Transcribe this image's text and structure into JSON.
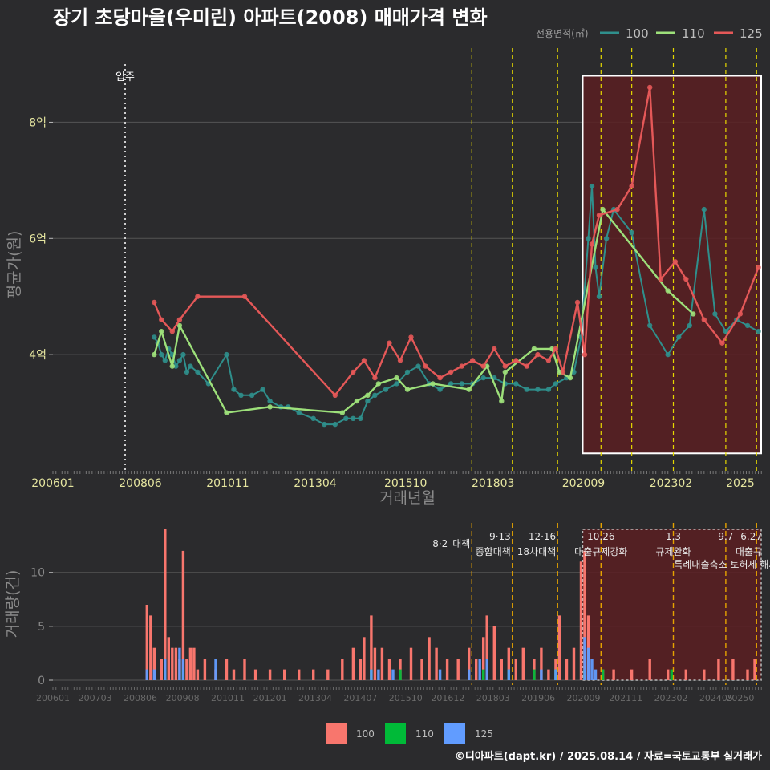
{
  "title": "장기 초당마을(우미린) 아파트(2008) 매매가격 변화",
  "credit": "©디아파트(dapt.kr) / 2025.08.14 / 자료=국토교통부 실거래가",
  "legend_title": "전용면적(㎡)",
  "colors": {
    "background": "#2b2b2d",
    "grid": "#555555",
    "s100": "#2f8f8c",
    "s110": "#9de07a",
    "s125": "#e45858",
    "bar100": "#f8766d",
    "bar110": "#00ba38",
    "bar125": "#619cff",
    "policy_line": "#e5d800",
    "bar_policy_line": "#e6a300",
    "highlight_fill": "#5a1f22",
    "tick_text": "#e6e6a0",
    "axis_title": "#8a8a8a"
  },
  "chart_data": [
    {
      "type": "line",
      "title": "장기 초당마을(우미린) 아파트(2008) 매매가격 변화",
      "xlabel": "거래년월",
      "ylabel": "평균가(원)",
      "x_ticks": [
        "200601",
        "200806",
        "201011",
        "201304",
        "201510",
        "201803",
        "202009",
        "202302",
        "2025"
      ],
      "y_ticks": [
        {
          "value": 4,
          "label": "4억"
        },
        {
          "value": 6,
          "label": "6억"
        },
        {
          "value": 8,
          "label": "8억"
        }
      ],
      "ylim": [
        2.0,
        9.0
      ],
      "xlim": [
        2006.0,
        2025.6
      ],
      "legend": {
        "title": "전용면적(㎡)",
        "entries": [
          "100",
          "110",
          "125"
        ],
        "placement": "top-right"
      },
      "annotation": {
        "label": "입주",
        "x": 2008.2
      },
      "policy_lines_x": [
        2017.58,
        2018.7,
        2019.95,
        2021.15,
        2022.0,
        2023.15,
        2024.6,
        2025.45
      ],
      "highlight_x": [
        2020.6,
        2025.6
      ],
      "highlight_y": [
        2.3,
        8.8
      ],
      "series": [
        {
          "name": "100",
          "x": [
            2008.8,
            2008.9,
            2009.0,
            2009.1,
            2009.2,
            2009.3,
            2009.4,
            2009.5,
            2009.6,
            2009.7,
            2009.8,
            2010.0,
            2010.3,
            2010.8,
            2011.0,
            2011.2,
            2011.5,
            2011.8,
            2012.0,
            2012.3,
            2012.5,
            2012.8,
            2013.2,
            2013.5,
            2013.8,
            2014.1,
            2014.3,
            2014.5,
            2014.7,
            2014.9,
            2015.2,
            2015.5,
            2015.8,
            2016.1,
            2016.4,
            2016.7,
            2017.0,
            2017.3,
            2017.6,
            2017.9,
            2018.2,
            2018.5,
            2018.8,
            2019.1,
            2019.4,
            2019.7,
            2019.9,
            2020.2,
            2020.4,
            2020.6,
            2020.8,
            2020.9,
            2021.0,
            2021.1,
            2021.3,
            2021.5,
            2022.0,
            2022.5,
            2023.0,
            2023.3,
            2023.6,
            2024.0,
            2024.3,
            2024.6,
            2024.9,
            2025.2,
            2025.5
          ],
          "values": [
            4.3,
            4.2,
            4.0,
            3.9,
            4.1,
            4.0,
            3.8,
            3.9,
            4.0,
            3.7,
            3.8,
            3.7,
            3.5,
            4.0,
            3.4,
            3.3,
            3.3,
            3.4,
            3.2,
            3.1,
            3.1,
            3.0,
            2.9,
            2.8,
            2.8,
            2.9,
            2.9,
            2.9,
            3.2,
            3.3,
            3.4,
            3.5,
            3.7,
            3.8,
            3.5,
            3.4,
            3.5,
            3.5,
            3.5,
            3.6,
            3.6,
            3.5,
            3.5,
            3.4,
            3.4,
            3.4,
            3.5,
            3.6,
            3.7,
            4.3,
            6.0,
            6.9,
            5.5,
            5.0,
            6.0,
            6.5,
            6.1,
            4.5,
            4.0,
            4.3,
            4.5,
            6.5,
            4.7,
            4.4,
            4.6,
            4.5,
            4.4
          ]
        },
        {
          "name": "110",
          "x": [
            2008.8,
            2009.0,
            2009.3,
            2009.5,
            2010.8,
            2012.0,
            2014.0,
            2014.4,
            2014.7,
            2015.0,
            2015.5,
            2015.8,
            2016.5,
            2017.5,
            2018.0,
            2018.4,
            2018.5,
            2019.3,
            2019.8,
            2020.0,
            2020.3,
            2021.2,
            2023.0,
            2023.7
          ],
          "values": [
            4.0,
            4.4,
            3.8,
            4.5,
            3.0,
            3.1,
            3.0,
            3.2,
            3.3,
            3.5,
            3.6,
            3.4,
            3.5,
            3.4,
            3.8,
            3.2,
            3.7,
            4.1,
            4.1,
            3.7,
            3.6,
            6.5,
            5.1,
            4.7
          ]
        },
        {
          "name": "125",
          "x": [
            2008.8,
            2009.0,
            2009.3,
            2009.5,
            2010.0,
            2011.3,
            2013.8,
            2014.3,
            2014.6,
            2014.9,
            2015.3,
            2015.6,
            2015.9,
            2016.3,
            2016.7,
            2017.0,
            2017.3,
            2017.6,
            2017.9,
            2018.2,
            2018.5,
            2018.8,
            2019.1,
            2019.4,
            2019.7,
            2019.9,
            2020.1,
            2020.5,
            2020.7,
            2020.9,
            2021.1,
            2021.6,
            2022.0,
            2022.5,
            2022.8,
            2023.2,
            2023.5,
            2024.0,
            2024.5,
            2025.0,
            2025.5
          ],
          "values": [
            4.9,
            4.6,
            4.4,
            4.6,
            5.0,
            5.0,
            3.3,
            3.7,
            3.9,
            3.6,
            4.2,
            3.9,
            4.3,
            3.8,
            3.6,
            3.7,
            3.8,
            3.9,
            3.8,
            4.1,
            3.8,
            3.9,
            3.8,
            4.0,
            3.9,
            4.1,
            3.7,
            4.9,
            4.0,
            5.9,
            6.4,
            6.5,
            6.9,
            8.6,
            5.3,
            5.6,
            5.3,
            4.6,
            4.2,
            4.7,
            5.5
          ]
        }
      ]
    },
    {
      "type": "bar",
      "ylabel": "거래량(건)",
      "x_ticks": [
        "200601",
        "200703",
        "200806",
        "200908",
        "201011",
        "201201",
        "201304",
        "201407",
        "201510",
        "201612",
        "201803",
        "201906",
        "202009",
        "202111",
        "202302",
        "202405",
        "20250"
      ],
      "y_ticks": [
        0,
        5,
        10
      ],
      "ylim": [
        0,
        14
      ],
      "xlim": [
        2006.0,
        2025.6
      ],
      "legend": {
        "entries": [
          "100",
          "110",
          "125"
        ],
        "placement": "bottom"
      },
      "policy_events": [
        {
          "date": "8·2",
          "label": "대책",
          "x": 2017.58
        },
        {
          "date": "9·13",
          "label": "종합대책",
          "x": 2018.7
        },
        {
          "date": "12·16",
          "label": "18차대책",
          "x": 2019.95
        },
        {
          "date": "10.26",
          "label": "대출규제강화",
          "x": 2021.15
        },
        {
          "date": "1.3",
          "label": "규제완화",
          "x": 2023.15
        },
        {
          "date": "9.7",
          "label": "특례대출축소 토허제 해제",
          "x": 2024.6
        },
        {
          "date": "6.27",
          "label": "대출규",
          "x": 2025.45
        }
      ],
      "highlight_x": [
        2020.6,
        2025.6
      ],
      "series": [
        {
          "name": "100",
          "x": [
            2008.6,
            2008.7,
            2008.8,
            2009.0,
            2009.1,
            2009.2,
            2009.3,
            2009.4,
            2009.5,
            2009.6,
            2009.7,
            2009.8,
            2009.9,
            2010.0,
            2010.2,
            2010.5,
            2010.8,
            2011.0,
            2011.3,
            2011.6,
            2012.0,
            2012.4,
            2012.8,
            2013.2,
            2013.6,
            2014.0,
            2014.3,
            2014.5,
            2014.6,
            2014.8,
            2014.9,
            2015.1,
            2015.3,
            2015.6,
            2015.9,
            2016.2,
            2016.4,
            2016.6,
            2016.9,
            2017.2,
            2017.5,
            2017.7,
            2017.9,
            2018.0,
            2018.2,
            2018.4,
            2018.6,
            2018.8,
            2019.0,
            2019.3,
            2019.5,
            2019.7,
            2019.9,
            2020.0,
            2020.2,
            2020.4,
            2020.6,
            2020.7,
            2020.8,
            2021.2,
            2021.5,
            2022.0,
            2022.5,
            2023.0,
            2023.5,
            2024.0,
            2024.4,
            2024.8,
            2025.2,
            2025.4
          ],
          "values": [
            7,
            6,
            3,
            2,
            14,
            4,
            3,
            3,
            2,
            12,
            2,
            3,
            3,
            1,
            2,
            1,
            2,
            1,
            2,
            1,
            1,
            1,
            1,
            1,
            1,
            2,
            3,
            2,
            4,
            6,
            3,
            3,
            2,
            2,
            3,
            2,
            4,
            3,
            2,
            2,
            3,
            2,
            4,
            6,
            5,
            2,
            3,
            2,
            3,
            2,
            3,
            1,
            2,
            6,
            2,
            3,
            11,
            12,
            6,
            1,
            1,
            1,
            2,
            1,
            1,
            1,
            2,
            2,
            1,
            2
          ]
        },
        {
          "name": "110",
          "x": [
            2009.1,
            2009.6,
            2014.8,
            2015.6,
            2017.9,
            2018.6,
            2019.3,
            2019.9,
            2020.7,
            2021.2,
            2023.1
          ],
          "values": [
            1,
            1,
            1,
            1,
            1,
            1,
            1,
            1,
            1,
            1,
            1
          ]
        },
        {
          "name": "125",
          "x": [
            2008.6,
            2008.8,
            2009.1,
            2009.5,
            2009.6,
            2010.5,
            2014.8,
            2015.0,
            2015.4,
            2016.7,
            2017.5,
            2017.8,
            2018.0,
            2018.6,
            2019.5,
            2019.9,
            2020.7,
            2020.8,
            2020.9,
            2021.0
          ],
          "values": [
            1,
            1,
            2,
            3,
            2,
            2,
            1,
            1,
            1,
            1,
            1,
            2,
            2,
            1,
            1,
            1,
            4,
            3,
            2,
            1
          ]
        }
      ]
    }
  ]
}
